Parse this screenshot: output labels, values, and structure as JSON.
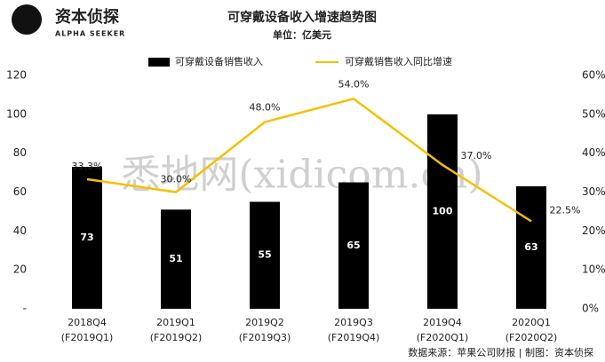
{
  "brand": {
    "name": "资本侦探",
    "tagline": "ALPHA SEEKER"
  },
  "watermark": "悉地网(xidicom.cn)",
  "source": "数据来源：苹果公司财报 | 制图：资本侦探",
  "chart_data": {
    "type": "bar_line",
    "title": "可穿戴设备收入增速趋势图",
    "subtitle": "单位：亿美元",
    "categories": [
      "2018Q4",
      "2019Q1",
      "2019Q2",
      "2019Q3",
      "2019Q4",
      "2020Q1"
    ],
    "fiscal_categories": [
      "(F2019Q1)",
      "(F2019Q2)",
      "(F2019Q3)",
      "(F2019Q4)",
      "(F2020Q1)",
      "(F2020Q2)"
    ],
    "series": [
      {
        "name": "可穿戴设备销售收入",
        "color": "#000000",
        "values": [
          73,
          51,
          55,
          65,
          100,
          63
        ]
      },
      {
        "name": "可穿戴销售收入同比增速",
        "color": "#f5c000",
        "axis": "y2",
        "values": [
          33.3,
          30.0,
          48.0,
          54.0,
          37.0,
          22.5
        ],
        "value_labels": [
          "33.3%",
          "30.0%",
          "48.0%",
          "54.0%",
          "37.0%",
          "22.5%"
        ]
      }
    ],
    "ylim": [
      0,
      120
    ],
    "yticks": [
      {
        "value": 0,
        "label": "-"
      },
      20,
      40,
      60,
      80,
      100,
      120
    ],
    "y2lim": [
      0,
      60
    ],
    "y2ticks": [
      {
        "value": 0,
        "label": "0%"
      },
      {
        "value": 10,
        "label": "10%"
      },
      {
        "value": 20,
        "label": "20%"
      },
      {
        "value": 30,
        "label": "30%"
      },
      {
        "value": 40,
        "label": "40%"
      },
      {
        "value": 50,
        "label": "50%"
      },
      {
        "value": 60,
        "label": "60%"
      }
    ],
    "grid": false,
    "legend": "top"
  }
}
